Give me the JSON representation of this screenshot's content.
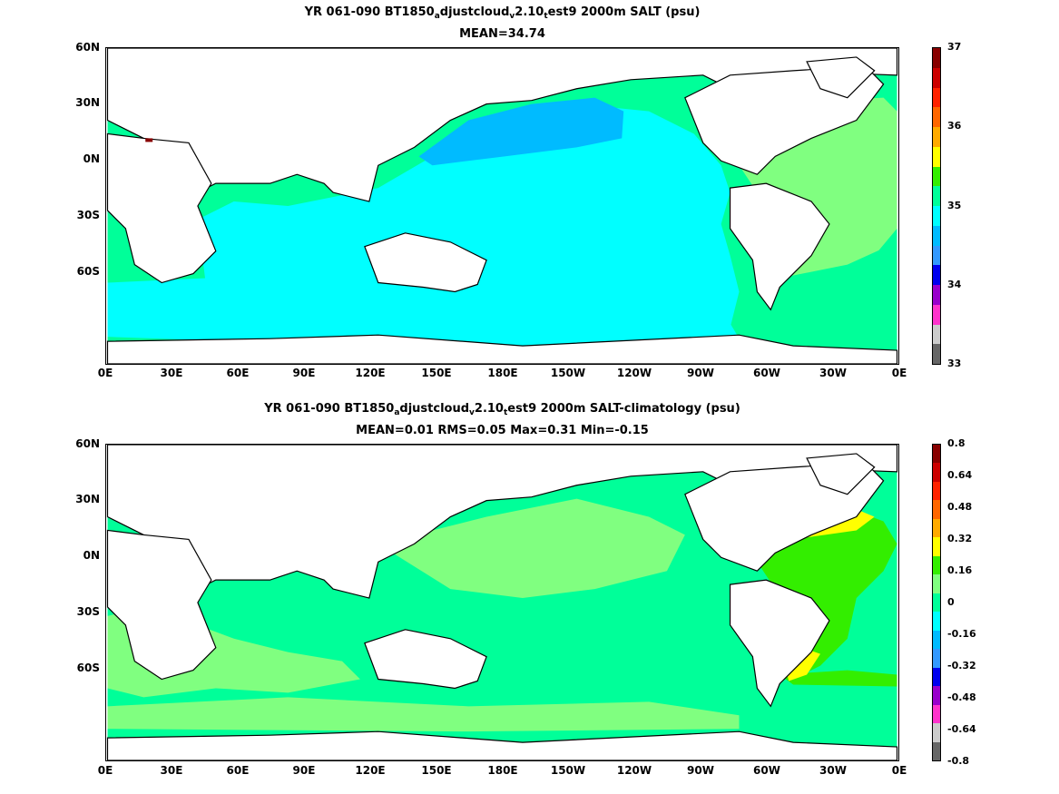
{
  "panels": [
    {
      "title_parts": [
        "YR 061-090 BT1850",
        "a",
        "djustcloud",
        "v",
        "2.10",
        "t",
        "est9 2000m SALT (psu)"
      ],
      "subtitle": "MEAN=34.74",
      "y_labels": [
        "60N",
        "30N",
        "0N",
        "30S",
        "60S"
      ],
      "x_labels": [
        "0E",
        "30E",
        "60E",
        "90E",
        "120E",
        "150E",
        "180E",
        "150W",
        "120W",
        "90W",
        "60W",
        "30W",
        "0E"
      ],
      "ocean_color": "#00ffff",
      "colorbar": {
        "labels": [
          "37",
          "36",
          "35",
          "34",
          "33"
        ],
        "colors": [
          "#666666",
          "#cccccc",
          "#ff33cc",
          "#9900cc",
          "#0000ee",
          "#3399ff",
          "#00bbff",
          "#00ffff",
          "#00ff99",
          "#33ee00",
          "#ffff00",
          "#ffaa00",
          "#ff6600",
          "#ff2200",
          "#cc0000",
          "#880000"
        ]
      }
    },
    {
      "title_parts": [
        "YR 061-090 BT1850",
        "a",
        "djustcloud",
        "v",
        "2.10",
        "t",
        "est9 2000m SALT-climatology (psu)"
      ],
      "subtitle": "MEAN=0.01   RMS=0.05   Max=0.31   Min=-0.15",
      "y_labels": [
        "60N",
        "30N",
        "0N",
        "30S",
        "60S"
      ],
      "x_labels": [
        "0E",
        "30E",
        "60E",
        "90E",
        "120E",
        "150E",
        "180E",
        "150W",
        "120W",
        "90W",
        "60W",
        "30W",
        "0E"
      ],
      "ocean_color": "#00ff99",
      "colorbar": {
        "labels": [
          "0.8",
          "0.64",
          "0.48",
          "0.32",
          "0.16",
          "0",
          "-0.16",
          "-0.32",
          "-0.48",
          "-0.64",
          "-0.8"
        ],
        "colors": [
          "#666666",
          "#cccccc",
          "#ff33cc",
          "#9900cc",
          "#0000ee",
          "#3399ff",
          "#00bbff",
          "#00ffff",
          "#00ff99",
          "#80ff80",
          "#33ee00",
          "#ffff00",
          "#ffaa00",
          "#ff6600",
          "#ff2200",
          "#cc0000",
          "#880000"
        ]
      }
    }
  ],
  "chart_data": [
    {
      "type": "heatmap",
      "title": "YR 061-090 BT1850_adjustcloud_v2.10_test9 2000m SALT (psu)",
      "subtitle": "MEAN=34.74",
      "x_ticks": [
        "0E",
        "30E",
        "60E",
        "90E",
        "120E",
        "150E",
        "180E",
        "150W",
        "120W",
        "90W",
        "60W",
        "30W",
        "0E"
      ],
      "y_ticks": [
        "60N",
        "30N",
        "0N",
        "30S",
        "60S"
      ],
      "colorbar_ticks": [
        33,
        34,
        35,
        36,
        37
      ],
      "colorbar_range": [
        33,
        37
      ],
      "mean": 34.74
    },
    {
      "type": "heatmap",
      "title": "YR 061-090 BT1850_adjustcloud_v2.10_test9 2000m SALT-climatology (psu)",
      "subtitle": "MEAN=0.01   RMS=0.05   Max=0.31   Min=-0.15",
      "x_ticks": [
        "0E",
        "30E",
        "60E",
        "90E",
        "120E",
        "150E",
        "180E",
        "150W",
        "120W",
        "90W",
        "60W",
        "30W",
        "0E"
      ],
      "y_ticks": [
        "60N",
        "30N",
        "0N",
        "30S",
        "60S"
      ],
      "colorbar_ticks": [
        -0.8,
        -0.64,
        -0.48,
        -0.32,
        -0.16,
        0,
        0.16,
        0.32,
        0.48,
        0.64,
        0.8
      ],
      "colorbar_range": [
        -0.8,
        0.8
      ],
      "mean": 0.01,
      "rms": 0.05,
      "max": 0.31,
      "min": -0.15
    }
  ]
}
